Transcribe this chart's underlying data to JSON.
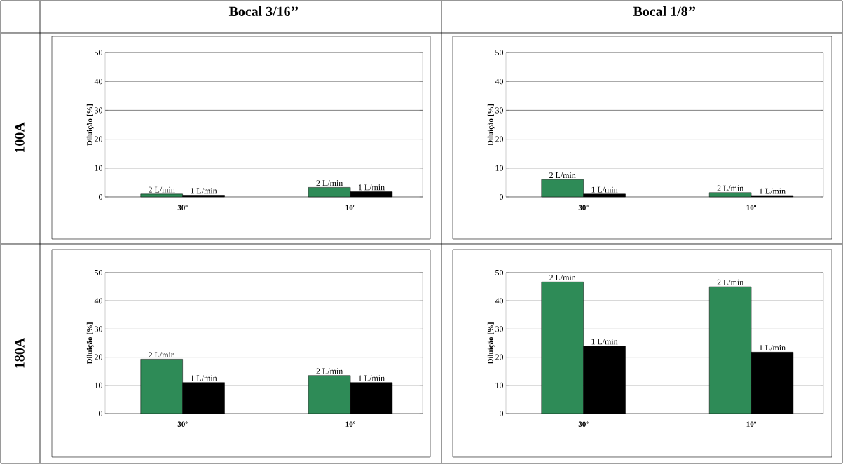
{
  "chart_data": [
    {
      "type": "bar",
      "title": "Bocal 3/16’’",
      "ylabel": "Diluição [%]",
      "categories": [
        "30º",
        "10º"
      ],
      "ylim": [
        0,
        50
      ],
      "yticks": [
        0,
        10,
        20,
        30,
        40,
        50
      ],
      "grid": "y",
      "annotations": [
        "100A"
      ],
      "series": [
        {
          "name": "2 L/min",
          "color": "#2e8b57",
          "values": [
            1.0,
            3.3
          ]
        },
        {
          "name": "1 L/min",
          "color": "#000000",
          "values": [
            0.6,
            1.8
          ]
        }
      ]
    },
    {
      "type": "bar",
      "title": "Bocal 1/8’’",
      "ylabel": "Diluição [%]",
      "categories": [
        "30º",
        "10º"
      ],
      "ylim": [
        0,
        50
      ],
      "yticks": [
        0,
        10,
        20,
        30,
        40,
        50
      ],
      "grid": "y",
      "series": [
        {
          "name": "2 L/min",
          "color": "#2e8b57",
          "values": [
            6.0,
            1.5
          ]
        },
        {
          "name": "1 L/min",
          "color": "#000000",
          "values": [
            1.0,
            0.5
          ]
        }
      ]
    },
    {
      "type": "bar",
      "ylabel": "Diluição [%]",
      "categories": [
        "30º",
        "10º"
      ],
      "ylim": [
        0,
        50
      ],
      "yticks": [
        0,
        10,
        20,
        30,
        40,
        50
      ],
      "grid": "y",
      "annotations": [
        "180A"
      ],
      "series": [
        {
          "name": "2 L/min",
          "color": "#2e8b57",
          "values": [
            19.3,
            13.5
          ]
        },
        {
          "name": "1 L/min",
          "color": "#000000",
          "values": [
            11.0,
            11.0
          ]
        }
      ]
    },
    {
      "type": "bar",
      "ylabel": "Diluição [%]",
      "categories": [
        "30º",
        "10º"
      ],
      "ylim": [
        0,
        50
      ],
      "yticks": [
        0,
        10,
        20,
        30,
        40,
        50
      ],
      "grid": "y",
      "series": [
        {
          "name": "2 L/min",
          "color": "#2e8b57",
          "values": [
            46.7,
            45.0
          ]
        },
        {
          "name": "1 L/min",
          "color": "#000000",
          "values": [
            24.0,
            21.8
          ]
        }
      ]
    }
  ]
}
